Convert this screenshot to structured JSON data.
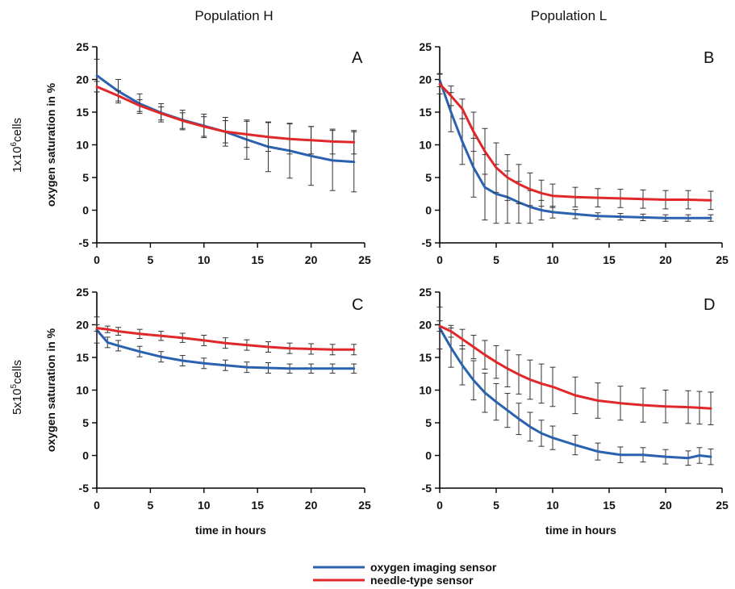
{
  "header": {
    "col_left": "Population H",
    "col_right": "Population L"
  },
  "rows": {
    "top_label": "1x10",
    "top_exp": "6",
    "top_suffix": "cells",
    "bottom_label": "5x10",
    "bottom_exp": "5",
    "bottom_suffix": "cells"
  },
  "legend": {
    "items": [
      {
        "label": "oxygen imaging sensor",
        "color": "#2a62b0"
      },
      {
        "label": "needle-type sensor",
        "color": "#e0282a"
      }
    ]
  },
  "colors": {
    "blue": "#2a62b0",
    "red": "#e0282a",
    "error": "#333333"
  },
  "chart_data": [
    {
      "type": "line",
      "panel": "A",
      "title": "",
      "xlabel": "",
      "ylabel": "oxygen saturation in %",
      "xlim": [
        0,
        25
      ],
      "ylim": [
        -5,
        25
      ],
      "xticks": [
        0,
        5,
        10,
        15,
        20,
        25
      ],
      "yticks": [
        -5,
        0,
        5,
        10,
        15,
        20,
        25
      ],
      "x": [
        0,
        2,
        4,
        6,
        8,
        10,
        12,
        14,
        16,
        18,
        20,
        22,
        24
      ],
      "series": [
        {
          "name": "oxygen imaging sensor",
          "color": "blue",
          "values": [
            20.6,
            18.2,
            16.3,
            14.9,
            13.8,
            12.9,
            12.0,
            10.8,
            9.7,
            9.1,
            8.3,
            7.6,
            7.4
          ],
          "errors": [
            2.5,
            1.8,
            1.5,
            1.4,
            1.5,
            1.8,
            2.2,
            3.0,
            3.8,
            4.2,
            4.5,
            4.6,
            4.6
          ]
        },
        {
          "name": "needle-type sensor",
          "color": "red",
          "values": [
            18.9,
            17.5,
            16.0,
            14.8,
            13.7,
            12.8,
            12.0,
            11.6,
            11.2,
            10.9,
            10.7,
            10.5,
            10.4
          ],
          "errors": [
            0.8,
            0.8,
            0.9,
            1.0,
            1.2,
            1.5,
            1.7,
            2.0,
            2.2,
            2.3,
            2.1,
            1.9,
            1.8
          ]
        }
      ]
    },
    {
      "type": "line",
      "panel": "B",
      "title": "",
      "xlabel": "",
      "ylabel": "",
      "xlim": [
        0,
        25
      ],
      "ylim": [
        -5,
        25
      ],
      "xticks": [
        0,
        5,
        10,
        15,
        20,
        25
      ],
      "yticks": [
        -5,
        0,
        5,
        10,
        15,
        20,
        25
      ],
      "x": [
        0,
        1,
        2,
        3,
        4,
        5,
        6,
        7,
        8,
        9,
        10,
        12,
        14,
        16,
        18,
        20,
        22,
        24
      ],
      "series": [
        {
          "name": "oxygen imaging sensor",
          "color": "blue",
          "values": [
            19.9,
            15.0,
            10.5,
            6.5,
            3.5,
            2.5,
            2.0,
            1.2,
            0.5,
            0.0,
            -0.3,
            -0.6,
            -0.9,
            -1.0,
            -1.1,
            -1.2,
            -1.2,
            -1.2
          ],
          "errors": [
            1.0,
            3.0,
            3.5,
            4.5,
            5.0,
            4.5,
            4.0,
            3.2,
            2.5,
            1.5,
            0.9,
            0.7,
            0.5,
            0.5,
            0.5,
            0.5,
            0.5,
            0.5
          ]
        },
        {
          "name": "needle-type sensor",
          "color": "red",
          "values": [
            19.3,
            17.5,
            15.5,
            12.0,
            9.0,
            6.5,
            5.0,
            4.0,
            3.2,
            2.6,
            2.2,
            2.0,
            1.9,
            1.8,
            1.7,
            1.6,
            1.6,
            1.5
          ],
          "errors": [
            1.5,
            1.5,
            1.5,
            3.0,
            3.5,
            3.8,
            3.5,
            3.0,
            2.5,
            2.0,
            1.8,
            1.5,
            1.4,
            1.4,
            1.4,
            1.4,
            1.4,
            1.4
          ]
        }
      ]
    },
    {
      "type": "line",
      "panel": "C",
      "title": "",
      "xlabel": "time in hours",
      "ylabel": "oxygen saturation in %",
      "xlim": [
        0,
        25
      ],
      "ylim": [
        -5,
        25
      ],
      "xticks": [
        0,
        5,
        10,
        15,
        20,
        25
      ],
      "yticks": [
        -5,
        0,
        5,
        10,
        15,
        20,
        25
      ],
      "x": [
        0,
        1,
        2,
        4,
        6,
        8,
        10,
        12,
        14,
        16,
        18,
        20,
        22,
        24
      ],
      "series": [
        {
          "name": "oxygen imaging sensor",
          "color": "blue",
          "values": [
            19.2,
            17.3,
            16.8,
            15.9,
            15.1,
            14.5,
            14.1,
            13.8,
            13.5,
            13.4,
            13.3,
            13.3,
            13.3,
            13.3
          ],
          "errors": [
            2.0,
            0.8,
            0.8,
            0.8,
            0.8,
            0.8,
            0.8,
            0.8,
            0.8,
            0.8,
            0.7,
            0.7,
            0.7,
            0.7
          ]
        },
        {
          "name": "needle-type sensor",
          "color": "red",
          "values": [
            19.5,
            19.3,
            19.0,
            18.6,
            18.3,
            18.0,
            17.6,
            17.2,
            16.9,
            16.6,
            16.4,
            16.3,
            16.2,
            16.2
          ],
          "errors": [
            0.5,
            0.5,
            0.6,
            0.7,
            0.7,
            0.7,
            0.8,
            0.8,
            0.8,
            0.8,
            0.8,
            0.8,
            0.8,
            0.8
          ]
        }
      ]
    },
    {
      "type": "line",
      "panel": "D",
      "title": "",
      "xlabel": "time in hours",
      "ylabel": "",
      "xlim": [
        0,
        25
      ],
      "ylim": [
        -5,
        25
      ],
      "xticks": [
        0,
        5,
        10,
        15,
        20,
        25
      ],
      "yticks": [
        -5,
        0,
        5,
        10,
        15,
        20,
        25
      ],
      "x": [
        0,
        1,
        2,
        3,
        4,
        5,
        6,
        7,
        8,
        9,
        10,
        12,
        14,
        16,
        18,
        20,
        22,
        23,
        24
      ],
      "series": [
        {
          "name": "oxygen imaging sensor",
          "color": "blue",
          "values": [
            19.5,
            16.5,
            13.8,
            11.5,
            9.6,
            8.2,
            6.9,
            5.6,
            4.4,
            3.4,
            2.7,
            1.6,
            0.6,
            0.1,
            0.1,
            -0.2,
            -0.4,
            0.0,
            -0.2
          ],
          "errors": [
            3.2,
            3.0,
            3.0,
            3.0,
            3.0,
            2.8,
            2.6,
            2.4,
            2.2,
            2.0,
            1.8,
            1.5,
            1.3,
            1.2,
            1.1,
            1.1,
            1.1,
            1.2,
            1.2
          ]
        },
        {
          "name": "needle-type sensor",
          "color": "red",
          "values": [
            19.8,
            19.0,
            17.8,
            16.6,
            15.4,
            14.3,
            13.3,
            12.4,
            11.6,
            11.0,
            10.5,
            9.2,
            8.4,
            8.0,
            7.7,
            7.5,
            7.4,
            7.3,
            7.2
          ],
          "errors": [
            0.8,
            0.9,
            1.5,
            1.8,
            2.2,
            2.5,
            2.8,
            3.0,
            3.0,
            3.0,
            3.0,
            2.8,
            2.7,
            2.6,
            2.6,
            2.5,
            2.5,
            2.5,
            2.5
          ]
        }
      ]
    }
  ]
}
